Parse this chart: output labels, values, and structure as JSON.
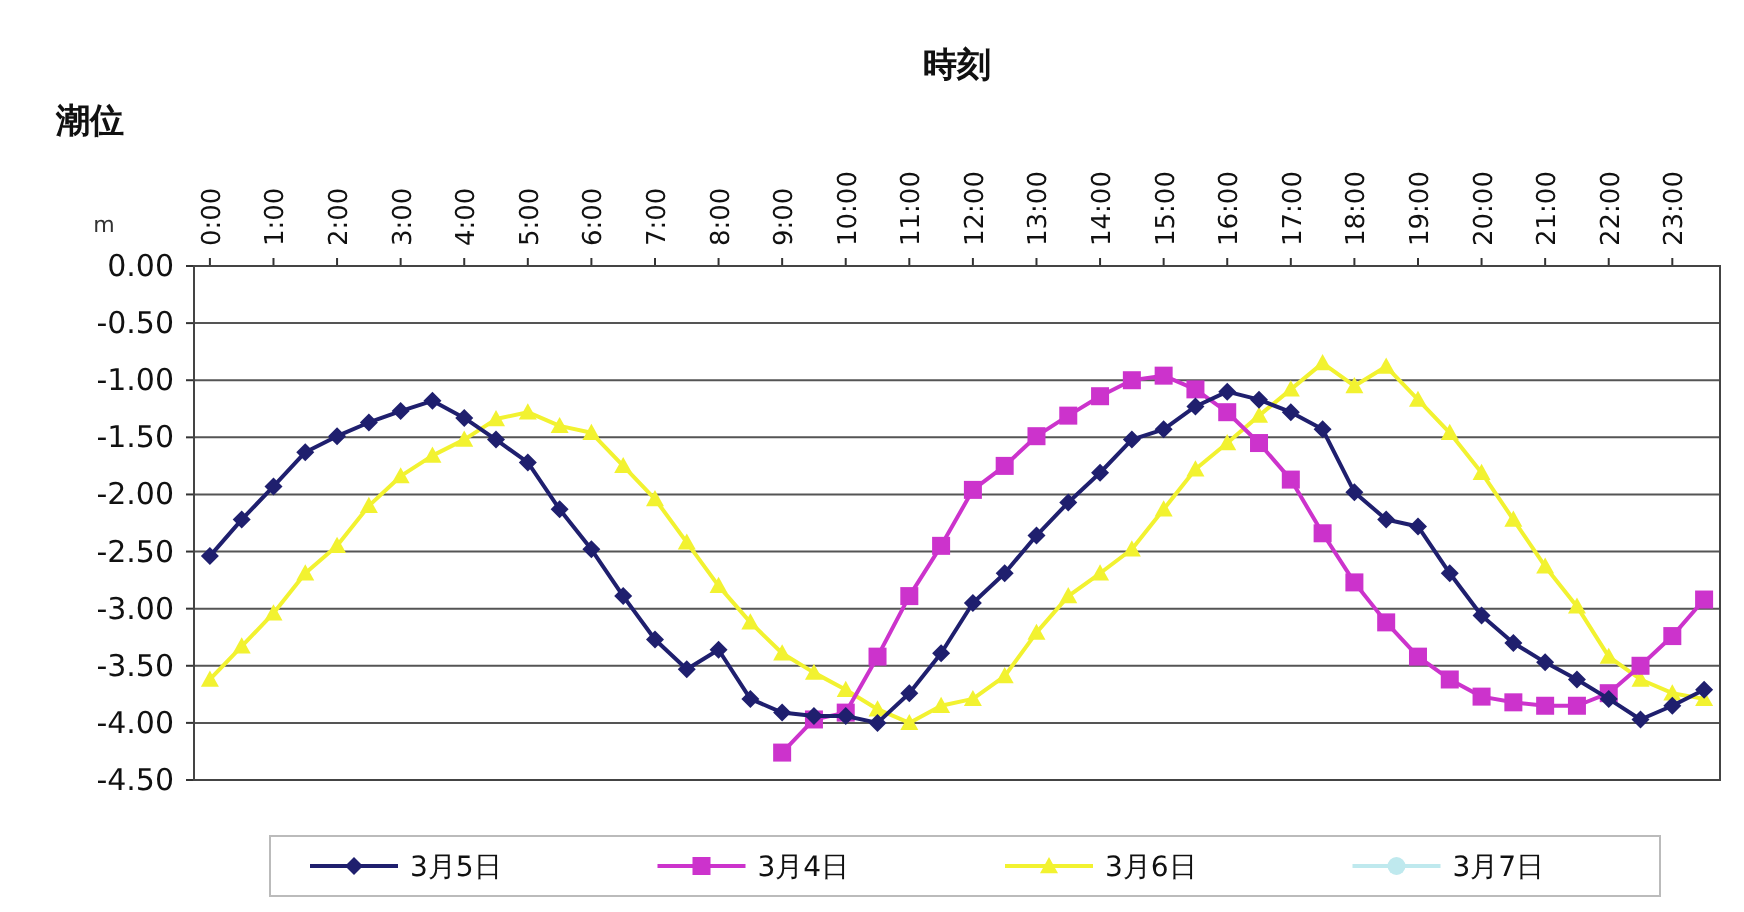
{
  "chart_data": {
    "type": "line",
    "xlabel": "時刻",
    "ylabel": "潮位",
    "annotations": [
      "m"
    ],
    "x": [
      0,
      0.5,
      1,
      1.5,
      2,
      2.5,
      3,
      3.5,
      4,
      4.5,
      5,
      5.5,
      6,
      6.5,
      7,
      7.5,
      8,
      8.5,
      9,
      9.5,
      10,
      10.5,
      11,
      11.5,
      12,
      12.5,
      13,
      13.5,
      14,
      14.5,
      15,
      15.5,
      16,
      16.5,
      17,
      17.5,
      18,
      18.5,
      19,
      19.5,
      20,
      20.5,
      21,
      21.5,
      22,
      22.5,
      23,
      23.5
    ],
    "xlim": [
      -0.25,
      23.75
    ],
    "xticks": [
      {
        "value": 0,
        "label": "0:00"
      },
      {
        "value": 1,
        "label": "1:00"
      },
      {
        "value": 2,
        "label": "2:00"
      },
      {
        "value": 3,
        "label": "3:00"
      },
      {
        "value": 4,
        "label": "4:00"
      },
      {
        "value": 5,
        "label": "5:00"
      },
      {
        "value": 6,
        "label": "6:00"
      },
      {
        "value": 7,
        "label": "7:00"
      },
      {
        "value": 8,
        "label": "8:00"
      },
      {
        "value": 9,
        "label": "9:00"
      },
      {
        "value": 10,
        "label": "10:00"
      },
      {
        "value": 11,
        "label": "11:00"
      },
      {
        "value": 12,
        "label": "12:00"
      },
      {
        "value": 13,
        "label": "13:00"
      },
      {
        "value": 14,
        "label": "14:00"
      },
      {
        "value": 15,
        "label": "15:00"
      },
      {
        "value": 16,
        "label": "16:00"
      },
      {
        "value": 17,
        "label": "17:00"
      },
      {
        "value": 18,
        "label": "18:00"
      },
      {
        "value": 19,
        "label": "19:00"
      },
      {
        "value": 20,
        "label": "20:00"
      },
      {
        "value": 21,
        "label": "21:00"
      },
      {
        "value": 22,
        "label": "22:00"
      },
      {
        "value": 23,
        "label": "23:00"
      }
    ],
    "ylim": [
      -4.5,
      0
    ],
    "yticks": [
      {
        "value": 0,
        "label": "0.00"
      },
      {
        "value": -0.5,
        "label": "-0.50"
      },
      {
        "value": -1,
        "label": "-1.00"
      },
      {
        "value": -1.5,
        "label": "-1.50"
      },
      {
        "value": -2,
        "label": "-2.00"
      },
      {
        "value": -2.5,
        "label": "-2.50"
      },
      {
        "value": -3,
        "label": "-3.00"
      },
      {
        "value": -3.5,
        "label": "-3.50"
      },
      {
        "value": -4,
        "label": "-4.00"
      },
      {
        "value": -4.5,
        "label": "-4.50"
      }
    ],
    "grid": "y",
    "legend": "bottom",
    "series": [
      {
        "name": "3月5日",
        "color": "#1f1f6e",
        "marker": "diamond",
        "values": [
          -2.54,
          -2.22,
          -1.93,
          -1.63,
          -1.49,
          -1.37,
          -1.27,
          -1.18,
          -1.33,
          -1.52,
          -1.72,
          -2.13,
          -2.48,
          -2.89,
          -3.27,
          -3.53,
          -3.36,
          -3.79,
          -3.91,
          -3.94,
          -3.94,
          -4.0,
          -3.74,
          -3.39,
          -2.95,
          -2.69,
          -2.36,
          -2.07,
          -1.81,
          -1.52,
          -1.43,
          -1.23,
          -1.1,
          -1.17,
          -1.28,
          -1.43,
          -1.98,
          -2.22,
          -2.28,
          -2.69,
          -3.06,
          -3.3,
          -3.47,
          -3.62,
          -3.79,
          -3.97,
          -3.85,
          -3.71
        ]
      },
      {
        "name": "3月4日",
        "color": "#cc33cc",
        "marker": "square",
        "values": [
          null,
          null,
          null,
          null,
          null,
          null,
          null,
          null,
          null,
          null,
          null,
          null,
          null,
          null,
          null,
          null,
          null,
          null,
          -4.26,
          -3.97,
          -3.91,
          -3.42,
          -2.89,
          -2.45,
          -1.96,
          -1.75,
          -1.49,
          -1.31,
          -1.14,
          -1.0,
          -0.96,
          -1.08,
          -1.28,
          -1.55,
          -1.87,
          -2.34,
          -2.77,
          -3.12,
          -3.42,
          -3.62,
          -3.77,
          -3.82,
          -3.85,
          -3.85,
          -3.74,
          -3.5,
          -3.24,
          -2.92
        ]
      },
      {
        "name": "3月6日",
        "color": "#f2f230",
        "marker": "triangle",
        "values": [
          -3.62,
          -3.33,
          -3.04,
          -2.69,
          -2.45,
          -2.1,
          -1.84,
          -1.66,
          -1.52,
          -1.34,
          -1.28,
          -1.4,
          -1.46,
          -1.75,
          -2.04,
          -2.42,
          -2.8,
          -3.12,
          -3.39,
          -3.56,
          -3.71,
          -3.88,
          -4.0,
          -3.85,
          -3.79,
          -3.59,
          -3.21,
          -2.89,
          -2.69,
          -2.48,
          -2.13,
          -1.78,
          -1.55,
          -1.31,
          -1.08,
          -0.85,
          -1.05,
          -0.88,
          -1.17,
          -1.46,
          -1.81,
          -2.22,
          -2.63,
          -2.98,
          -3.42,
          -3.62,
          -3.74,
          -3.79
        ]
      },
      {
        "name": "3月7日",
        "color": "#bfe9ee",
        "marker": "circle",
        "values": [
          null,
          null,
          null,
          null,
          null,
          null,
          null,
          null,
          null,
          null,
          null,
          null,
          null,
          null,
          null,
          null,
          null,
          null,
          null,
          null,
          null,
          null,
          null,
          null,
          null,
          null,
          null,
          null,
          null,
          null,
          null,
          null,
          null,
          null,
          null,
          null,
          null,
          null,
          null,
          null,
          null,
          null,
          null,
          null,
          null,
          null,
          null,
          null
        ]
      }
    ]
  }
}
